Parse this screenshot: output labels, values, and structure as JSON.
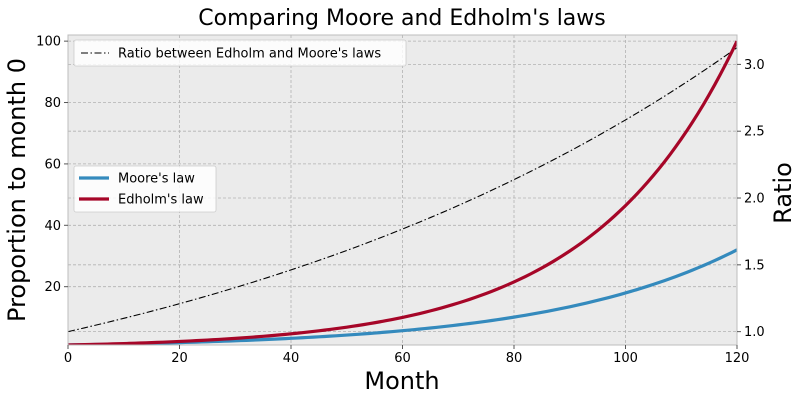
{
  "chart_data": {
    "type": "line",
    "title": "Comparing Moore and Edholm's laws",
    "xlabel": "Month",
    "ylabel_left": "Proportion to month 0",
    "ylabel_right": "Ratio",
    "xlim": [
      0,
      120
    ],
    "ylim_left": [
      1,
      102
    ],
    "ylim_right": [
      0.9,
      3.22
    ],
    "x_ticks": [
      0,
      20,
      40,
      60,
      80,
      100,
      120
    ],
    "y_ticks_left": [
      20,
      40,
      60,
      80,
      100
    ],
    "y_ticks_right": [
      1.0,
      1.5,
      2.0,
      2.5,
      3.0
    ],
    "y_ticks_right_labels": [
      "1.0",
      "1.5",
      "2.0",
      "2.5",
      "3.0"
    ],
    "grid": true,
    "background": "#ebebeb",
    "x": [
      0,
      10,
      20,
      30,
      40,
      50,
      60,
      70,
      80,
      90,
      100,
      110,
      120
    ],
    "series": [
      {
        "name": "Moore's law",
        "axis": "left",
        "color": "#348abd",
        "style": "solid",
        "values": [
          1.0,
          1.33,
          1.78,
          2.38,
          3.17,
          4.24,
          5.66,
          7.55,
          10.08,
          13.45,
          17.96,
          23.97,
          32.0
        ]
      },
      {
        "name": "Edholm's law",
        "axis": "left",
        "color": "#a60628",
        "style": "solid",
        "values": [
          1.0,
          1.47,
          2.15,
          3.16,
          4.64,
          6.81,
          10.0,
          14.68,
          21.54,
          31.62,
          46.42,
          68.13,
          100.0
        ]
      },
      {
        "name": "Ratio between Edholm and Moore's laws",
        "axis": "right",
        "color": "#000000",
        "style": "dashdot",
        "values": [
          1.0,
          1.1,
          1.21,
          1.33,
          1.46,
          1.61,
          1.77,
          1.94,
          2.14,
          2.35,
          2.58,
          2.84,
          3.13
        ]
      }
    ],
    "legend_right_axis": {
      "placement": "upper-left",
      "entries": [
        "Ratio between Edholm and Moore's laws"
      ]
    },
    "legend_left_axis": {
      "placement": "center-left",
      "entries": [
        "Moore's law",
        "Edholm's law"
      ]
    }
  }
}
